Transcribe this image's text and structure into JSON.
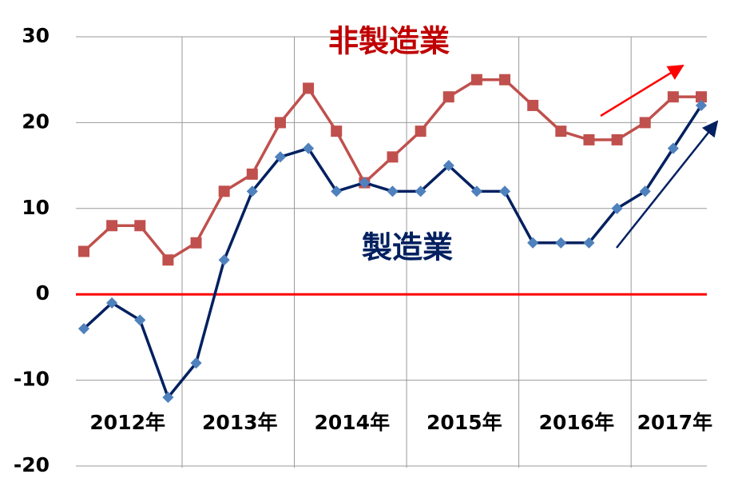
{
  "chart_data": {
    "type": "line",
    "categories": [
      null,
      null,
      null,
      null,
      null,
      null,
      null,
      null,
      null,
      null,
      null,
      null,
      null,
      null,
      null,
      null,
      null,
      null,
      null,
      null,
      null,
      null,
      null
    ],
    "year_labels": [
      "2012年",
      "2013年",
      "2014年",
      "2015年",
      "2016年",
      "2017年"
    ],
    "series": [
      {
        "name": "非製造業",
        "color": "#c0504d",
        "values": [
          5,
          8,
          8,
          4,
          6,
          12,
          14,
          20,
          24,
          19,
          13,
          16,
          19,
          23,
          25,
          25,
          22,
          19,
          18,
          18,
          20,
          23,
          23
        ]
      },
      {
        "name": "製造業",
        "color": "#002060",
        "values": [
          -4,
          -1,
          -3,
          -12,
          -8,
          4,
          12,
          16,
          17,
          12,
          13,
          12,
          12,
          15,
          12,
          12,
          6,
          6,
          6,
          10,
          12,
          17,
          22
        ]
      }
    ],
    "ylim": [
      -20,
      30
    ],
    "yticks": [
      -20,
      -10,
      0,
      10,
      20,
      30
    ],
    "grid": true
  }
}
